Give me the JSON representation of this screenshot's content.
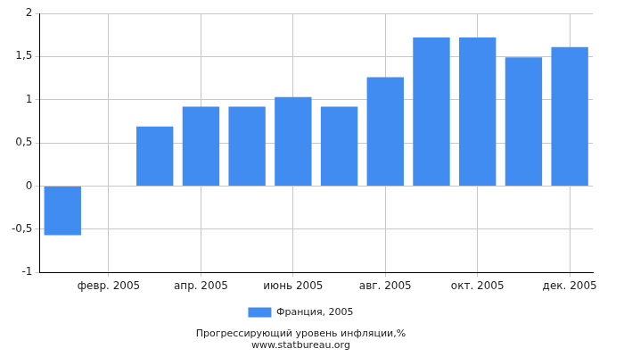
{
  "chart_data": {
    "type": "bar",
    "title": "Прогрессирующий уровень инфляции,%",
    "subtitle": "www.statbureau.org",
    "categories": [
      null,
      "февр. 2005",
      null,
      "апр. 2005",
      null,
      "июнь 2005",
      null,
      "авг. 2005",
      null,
      "окт. 2005",
      null,
      "дек. 2005"
    ],
    "series": [
      {
        "name": "Франция, 2005",
        "color": "#418cf0",
        "values": [
          -0.57,
          0,
          0.69,
          0.92,
          0.92,
          1.03,
          0.92,
          1.26,
          1.72,
          1.72,
          1.49,
          1.61
        ]
      }
    ],
    "ylim": [
      -1,
      2
    ],
    "yticks": [
      -1,
      {
        "value": -0.5,
        "label": "-0,5"
      },
      0,
      {
        "value": 0.5,
        "label": "0,5"
      },
      1,
      {
        "value": 1.5,
        "label": "1,5"
      },
      2
    ],
    "grid": true,
    "legend": "bottom"
  }
}
